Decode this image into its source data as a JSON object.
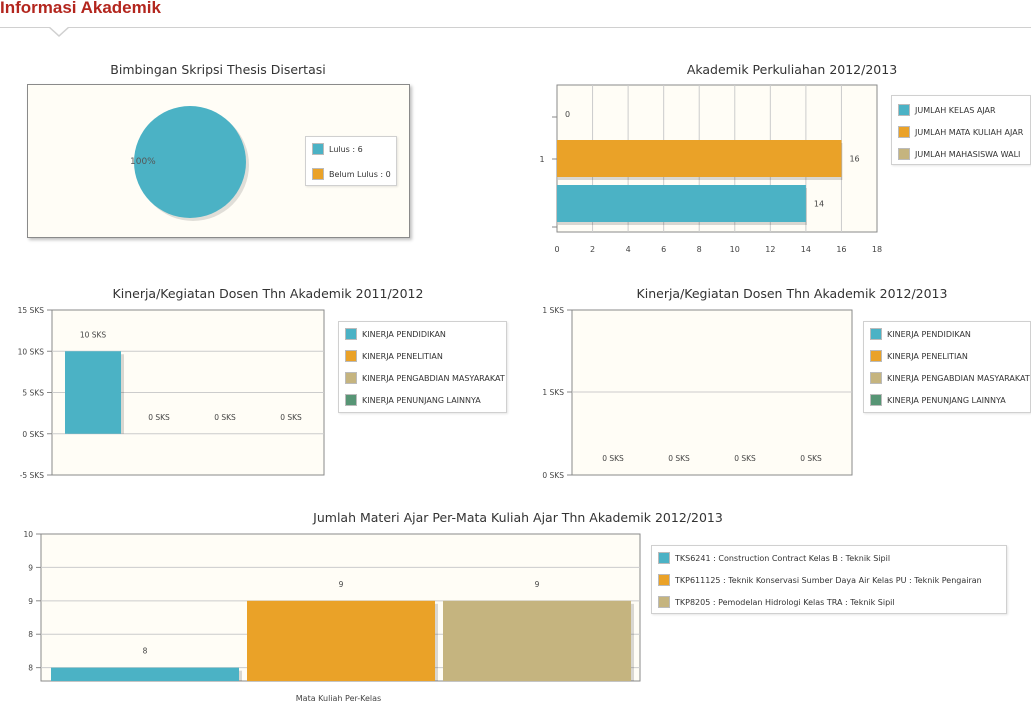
{
  "header": {
    "title": "Informasi Akademik"
  },
  "colors": {
    "blue": "#4bb2c5",
    "orange": "#eaa228",
    "tan": "#c5b47f",
    "green": "#579575",
    "plot_bg": "#fffdf6",
    "title_red": "#b3261e"
  },
  "chart_data": [
    {
      "type": "pie",
      "title": "Bimbingan Skripsi Thesis Disertasi",
      "categories": [
        "Lulus",
        "Belum Lulus"
      ],
      "values": [
        6,
        0
      ],
      "slice_label": "100%",
      "legend": [
        "Lulus : 6",
        "Belum Lulus : 0"
      ]
    },
    {
      "type": "bar",
      "orientation": "horizontal",
      "title": "Akademik Perkuliahan 2012/2013",
      "categories": [
        "1"
      ],
      "series": [
        {
          "name": "JUMLAH KELAS AJAR",
          "values": [
            14
          ],
          "label": "14"
        },
        {
          "name": "JUMLAH MATA KULIAH AJAR",
          "values": [
            16
          ],
          "label": "16"
        },
        {
          "name": "JUMLAH MAHASISWA WALI",
          "values": [
            0
          ],
          "label": "0"
        }
      ],
      "xlim": [
        0,
        18
      ],
      "x_ticks": [
        "0",
        "2",
        "4",
        "6",
        "8",
        "10",
        "12",
        "14",
        "16",
        "18"
      ]
    },
    {
      "type": "bar",
      "title": "Kinerja/Kegiatan Dosen Thn Akademik 2011/2012",
      "series": [
        {
          "name": "KINERJA PENDIDIKAN",
          "values": [
            10
          ],
          "label": "10 SKS"
        },
        {
          "name": "KINERJA PENELITIAN",
          "values": [
            0
          ],
          "label": "0 SKS"
        },
        {
          "name": "KINERJA PENGABDIAN MASYARAKAT",
          "values": [
            0
          ],
          "label": "0 SKS"
        },
        {
          "name": "KINERJA PENUNJANG LAINNYA",
          "values": [
            0
          ],
          "label": "0 SKS"
        }
      ],
      "ylim": [
        -5,
        15
      ],
      "y_ticks": [
        "15 SKS",
        "10 SKS",
        "5 SKS",
        "0 SKS",
        "-5 SKS"
      ]
    },
    {
      "type": "bar",
      "title": "Kinerja/Kegiatan Dosen Thn Akademik 2012/2013",
      "series": [
        {
          "name": "KINERJA PENDIDIKAN",
          "values": [
            0
          ],
          "label": "0 SKS"
        },
        {
          "name": "KINERJA PENELITIAN",
          "values": [
            0
          ],
          "label": "0 SKS"
        },
        {
          "name": "KINERJA PENGABDIAN MASYARAKAT",
          "values": [
            0
          ],
          "label": "0 SKS"
        },
        {
          "name": "KINERJA PENUNJANG LAINNYA",
          "values": [
            0
          ],
          "label": "0 SKS"
        }
      ],
      "ylim": [
        0,
        1
      ],
      "y_ticks": [
        "1 SKS",
        "1 SKS",
        "0 SKS"
      ]
    },
    {
      "type": "bar",
      "title": "Jumlah Materi Ajar Per-Mata Kuliah Ajar Thn Akademik 2012/2013",
      "xlabel": "Mata Kuliah Per-Kelas",
      "series": [
        {
          "name": "TKS6241 : Construction Contract Kelas B : Teknik Sipil",
          "values": [
            8
          ],
          "label": "8"
        },
        {
          "name": "TKP611125 : Teknik Konservasi Sumber Daya Air Kelas PU : Teknik Pengairan",
          "values": [
            9
          ],
          "label": "9"
        },
        {
          "name": "TKP8205 : Pemodelan Hidrologi Kelas TRA : Teknik Sipil",
          "values": [
            9
          ],
          "label": "9"
        }
      ],
      "ylim": [
        7.8,
        10
      ],
      "y_ticks": [
        "10",
        "9",
        "9",
        "8",
        "8"
      ]
    }
  ]
}
